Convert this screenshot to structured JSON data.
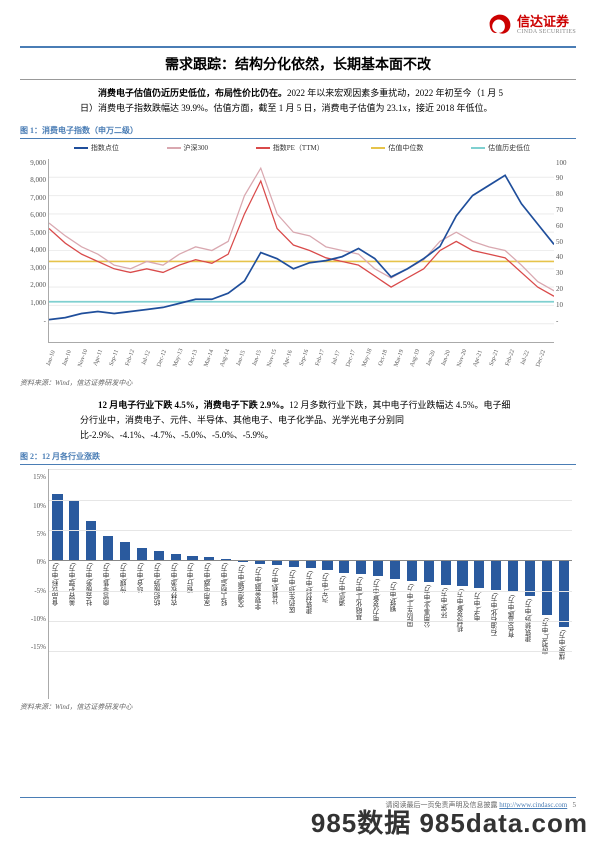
{
  "logo": {
    "cn": "信达证券",
    "en": "CINDA SECURITIES"
  },
  "title": "需求跟踪：结构分化依然，长期基本面不改",
  "para1": {
    "bold": "消费电子估值仍近历史低位，布局性价比仍在。",
    "rest": "2022 年以来宏观因素多重扰动，2022 年初至今（1 月 5 日）消费电子指数跌幅达 39.9%。估值方面，截至 1 月 5 日，消费电子估值为 23.1x，接近 2018 年低位。"
  },
  "fig1": {
    "cap_no": "图 1：",
    "cap_txt": "消费电子指数（申万二级）",
    "source": "资料来源：Wind，信达证券研发中心",
    "legend": [
      {
        "label": "指数点位",
        "color": "#1f4e9b"
      },
      {
        "label": "沪深300",
        "color": "#d9a8b0"
      },
      {
        "label": "指数PE（TTM）",
        "color": "#d94a4a"
      },
      {
        "label": "估值中位数",
        "color": "#e6c34a"
      },
      {
        "label": "估值历史低位",
        "color": "#7fd0d0"
      }
    ],
    "yleft": [
      "9,000",
      "8,000",
      "7,000",
      "6,000",
      "5,000",
      "4,000",
      "3,000",
      "2,000",
      "1,000",
      "-"
    ],
    "yright": [
      "100",
      "90",
      "80",
      "70",
      "60",
      "50",
      "40",
      "30",
      "20",
      "10",
      "-"
    ],
    "xticks": [
      "Jan-10",
      "Jun-10",
      "Nov-10",
      "Apr-11",
      "Sep-11",
      "Feb-12",
      "Jul-12",
      "Dec-12",
      "May-13",
      "Oct-13",
      "Mar-14",
      "Aug-14",
      "Jan-15",
      "Jun-15",
      "Nov-15",
      "Apr-16",
      "Sep-16",
      "Feb-17",
      "Jul-17",
      "Dec-17",
      "May-18",
      "Oct-18",
      "Mar-19",
      "Aug-19",
      "Jan-20",
      "Jun-20",
      "Nov-20",
      "Apr-21",
      "Sep-21",
      "Feb-22",
      "Jul-22",
      "Dec-22"
    ],
    "index_pts": [
      1100,
      1200,
      1400,
      1500,
      1400,
      1500,
      1600,
      1700,
      1900,
      2100,
      2100,
      2400,
      3000,
      4400,
      4100,
      3600,
      3900,
      4000,
      4200,
      4600,
      4100,
      3200,
      3600,
      4100,
      4700,
      6200,
      7200,
      7700,
      8200,
      6800,
      5800,
      4800
    ],
    "hs300_r": [
      65,
      58,
      52,
      48,
      42,
      40,
      44,
      42,
      48,
      52,
      50,
      55,
      80,
      95,
      70,
      60,
      58,
      52,
      50,
      48,
      40,
      35,
      40,
      45,
      55,
      60,
      55,
      52,
      50,
      42,
      33,
      28
    ],
    "pe_r": [
      62,
      54,
      48,
      44,
      40,
      38,
      40,
      38,
      42,
      45,
      43,
      48,
      70,
      88,
      62,
      53,
      50,
      46,
      44,
      42,
      36,
      30,
      35,
      40,
      50,
      55,
      50,
      48,
      46,
      38,
      30,
      25
    ],
    "median_r": 44,
    "low_r": 22,
    "yleft_max": 9000,
    "yright_max": 100
  },
  "para2": {
    "bold": "12 月电子行业下跌 4.5%，消费电子下跌 2.9%。",
    "rest": "12 月多数行业下跌，其中电子行业跌幅达 4.5%。电子细分行业中，消费电子、元件、半导体、其他电子、电子化学品、光学光电子分别同比-2.9%、-4.1%、-4.7%、-5.0%、-5.0%、-5.9%。"
  },
  "fig2": {
    "cap_no": "图 2：",
    "cap_txt": "12 月各行业涨跌",
    "source": "资料来源：Wind，信达证券研发中心",
    "yticks": [
      "15%",
      "10%",
      "5%",
      "0%",
      "-5%",
      "-10%",
      "-15%"
    ],
    "ymax": 15,
    "ymin": -15,
    "bar_color": "#2a5a9e",
    "bars": [
      {
        "l": "食品饮料(申万)",
        "v": 11
      },
      {
        "l": "美容护理(申万)",
        "v": 10
      },
      {
        "l": "社会服务(申万)",
        "v": 6.5
      },
      {
        "l": "商贸零售(申万)",
        "v": 4
      },
      {
        "l": "传媒(申万)",
        "v": 3
      },
      {
        "l": "综合(申万)",
        "v": 2
      },
      {
        "l": "纺织服饰(申万)",
        "v": 1.5
      },
      {
        "l": "农林牧渔(申万)",
        "v": 1
      },
      {
        "l": "银行(申万)",
        "v": 0.8
      },
      {
        "l": "家用电器(申万)",
        "v": 0.5
      },
      {
        "l": "轻工制造(申万)",
        "v": 0.2
      },
      {
        "l": "交通运输(申万)",
        "v": -0.3
      },
      {
        "l": "非银金融(申万)",
        "v": -0.5
      },
      {
        "l": "计算机(申万)",
        "v": -0.8
      },
      {
        "l": "医药生物(申万)",
        "v": -1
      },
      {
        "l": "建筑材料(申万)",
        "v": -1.3
      },
      {
        "l": "汽车(申万)",
        "v": -1.6
      },
      {
        "l": "通信(申万)",
        "v": -2
      },
      {
        "l": "基础化工(申万)",
        "v": -2.3
      },
      {
        "l": "电力设备(申万)",
        "v": -2.6
      },
      {
        "l": "钢铁(申万)",
        "v": -3
      },
      {
        "l": "国防军工(申万)",
        "v": -3.3
      },
      {
        "l": "公用事业(申万)",
        "v": -3.6
      },
      {
        "l": "环保(申万)",
        "v": -4
      },
      {
        "l": "机械设备(申万)",
        "v": -4.2
      },
      {
        "l": "电子(申万)",
        "v": -4.5
      },
      {
        "l": "石油石化(申万)",
        "v": -4.8
      },
      {
        "l": "有色金属(申万)",
        "v": -5.2
      },
      {
        "l": "建筑装饰(申万)",
        "v": -5.8
      },
      {
        "l": "房地产(申万)",
        "v": -9
      },
      {
        "l": "煤炭(申万)",
        "v": -11
      }
    ]
  },
  "footer": {
    "text": "请阅读最后一页免责声明及信息披露",
    "url": "http://www.cindasc.com",
    "page": "5"
  },
  "watermark": "985数据 985data.com"
}
